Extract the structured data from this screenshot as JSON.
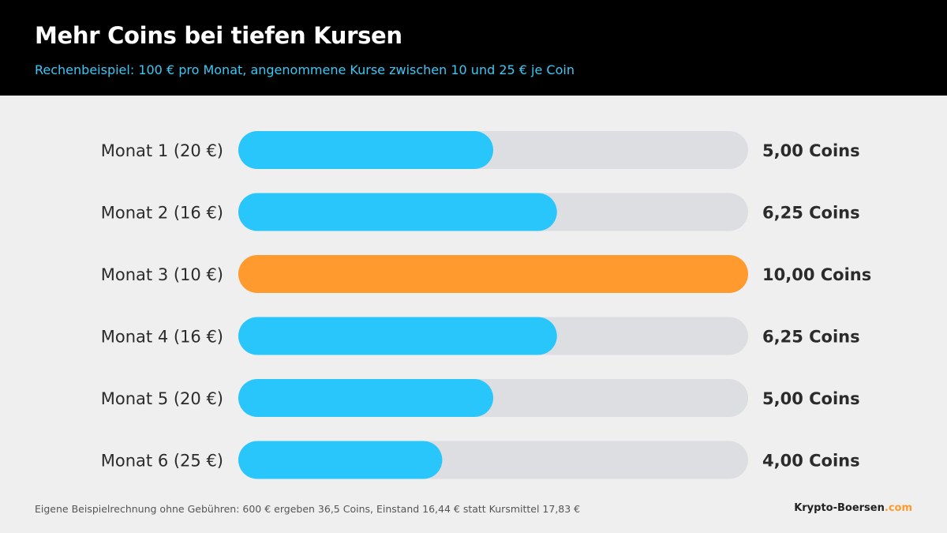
{
  "header": {
    "title": "Mehr Coins bei tiefen Kursen",
    "subtitle": "Rechenbeispiel: 100 € pro Monat, angenommene Kurse zwischen 10 und 25 € je Coin"
  },
  "chart_data": {
    "type": "bar",
    "orientation": "horizontal",
    "title": "Mehr Coins bei tiefen Kursen",
    "subtitle": "Rechenbeispiel: 100 € pro Monat, angenommene Kurse zwischen 10 und 25 € je Coin",
    "categories": [
      "Monat 1 (20 €)",
      "Monat 2 (16 €)",
      "Monat 3 (10 €)",
      "Monat 4 (16 €)",
      "Monat 5 (20 €)",
      "Monat 6 (25 €)"
    ],
    "values": [
      5.0,
      6.25,
      10.0,
      6.25,
      5.0,
      4.0
    ],
    "value_labels": [
      "5,00 Coins",
      "6,25 Coins",
      "10,00 Coins",
      "6,25 Coins",
      "5,00 Coins",
      "4,00 Coins"
    ],
    "highlight_index": 2,
    "xlim": [
      0,
      10
    ],
    "grid": false,
    "legend": "none",
    "colors": {
      "bar": "#29c6fb",
      "highlight": "#ff9a2e",
      "track": "#dddee2",
      "label": "#2b2b2b"
    }
  },
  "footer": {
    "note": "Eigene Beispielrechnung ohne Gebühren: 600 € ergeben 36,5 Coins, Einstand 16,44 € statt Kursmittel 17,83 €",
    "brand_name": "Krypto-Boersen",
    "brand_tld": ".com"
  }
}
